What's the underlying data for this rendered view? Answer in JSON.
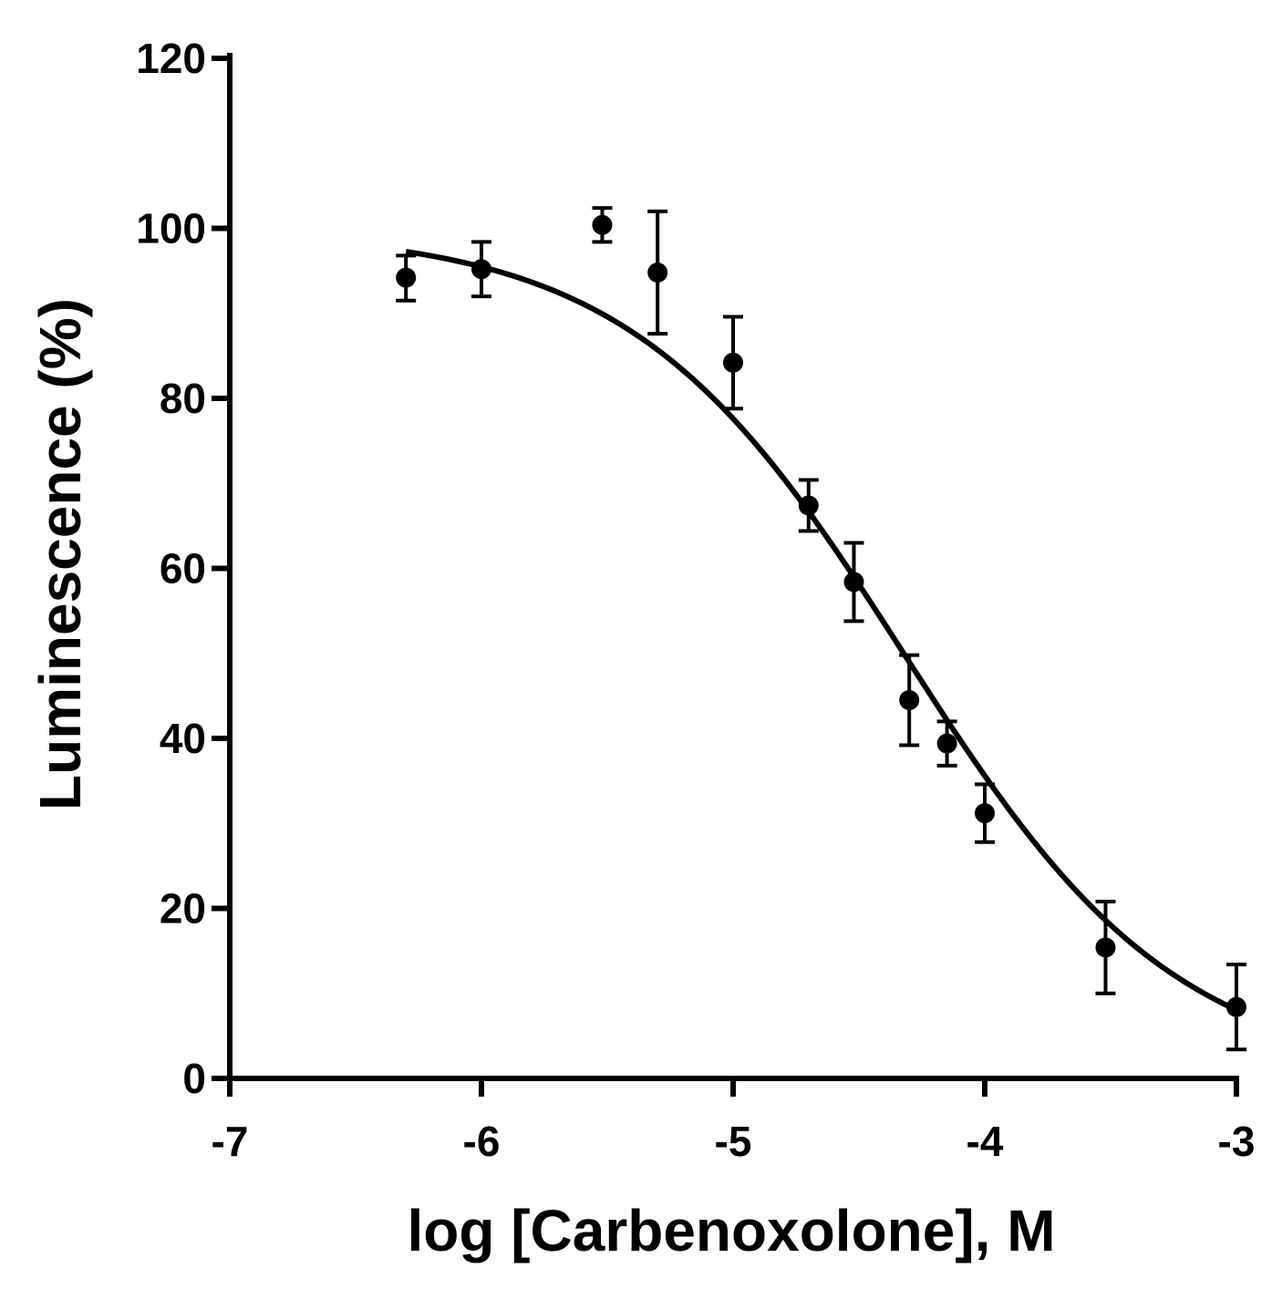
{
  "chart_data": {
    "type": "scatter",
    "xlabel": "log [Carbenoxolone], M",
    "ylabel": "Luminescence (%)",
    "xlim": [
      -7,
      -3
    ],
    "ylim": [
      0,
      120
    ],
    "x_ticks": [
      "-7",
      "-6",
      "-5",
      "-4",
      "-3"
    ],
    "y_ticks": [
      "0",
      "20",
      "40",
      "60",
      "80",
      "100",
      "120"
    ],
    "grid": false,
    "points": [
      {
        "x": -6.3,
        "y": 94.2,
        "err_low": 91.5,
        "err_high": 96.8
      },
      {
        "x": -6.0,
        "y": 95.2,
        "err_low": 92.0,
        "err_high": 98.4
      },
      {
        "x": -5.52,
        "y": 100.4,
        "err_low": 98.4,
        "err_high": 102.4
      },
      {
        "x": -5.3,
        "y": 94.8,
        "err_low": 87.6,
        "err_high": 102.0
      },
      {
        "x": -5.0,
        "y": 84.2,
        "err_low": 78.8,
        "err_high": 89.6
      },
      {
        "x": -4.7,
        "y": 67.4,
        "err_low": 64.4,
        "err_high": 70.4
      },
      {
        "x": -4.52,
        "y": 58.4,
        "err_low": 53.8,
        "err_high": 63.0
      },
      {
        "x": -4.3,
        "y": 44.5,
        "err_low": 39.2,
        "err_high": 49.8
      },
      {
        "x": -4.15,
        "y": 39.4,
        "err_low": 36.8,
        "err_high": 42.0
      },
      {
        "x": -4.0,
        "y": 31.2,
        "err_low": 27.8,
        "err_high": 34.6
      },
      {
        "x": -3.52,
        "y": 15.4,
        "err_low": 10.0,
        "err_high": 20.8
      },
      {
        "x": -3.0,
        "y": 8.4,
        "err_low": 3.4,
        "err_high": 13.4
      }
    ],
    "fit": {
      "model": "four-parameter logistic",
      "top": 99.8,
      "bottom": 0,
      "log_ic50": -4.32,
      "hill_slope": -0.8,
      "x_range": [
        -6.3,
        -3.0
      ]
    }
  }
}
